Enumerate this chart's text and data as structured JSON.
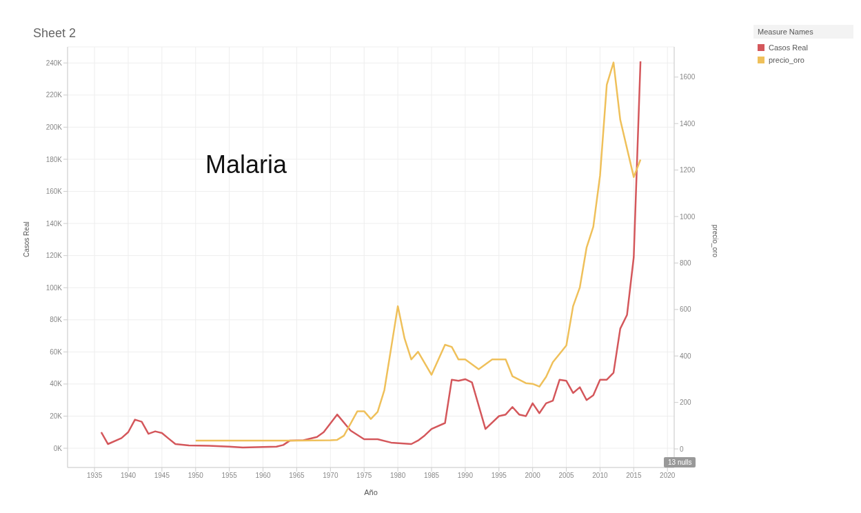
{
  "chart_data": {
    "type": "line",
    "title": "Sheet 2",
    "xlabel": "Año",
    "ylabel": "Casos Real",
    "y2label": "precio_oro",
    "legend_title": "Measure Names",
    "annotations": [
      "Malaria",
      "13 nulls"
    ],
    "series": [
      {
        "name": "Casos Real",
        "color": "#d4575b",
        "axis": "y",
        "x": [
          1936,
          1937,
          1939,
          1940,
          1941,
          1942,
          1943,
          1944,
          1945,
          1946,
          1947,
          1949,
          1952,
          1955,
          1957,
          1960,
          1962,
          1963,
          1964,
          1966,
          1968,
          1969,
          1971,
          1973,
          1975,
          1977,
          1979,
          1982,
          1983,
          1984,
          1985,
          1987,
          1988,
          1989,
          1990,
          1991,
          1993,
          1995,
          1996,
          1997,
          1998,
          1999,
          2000,
          2001,
          2002,
          2003,
          2004,
          2005,
          2006,
          2007,
          2008,
          2009,
          2010,
          2011,
          2012,
          2013,
          2014,
          2015,
          2016
        ],
        "values": [
          10000,
          2600,
          6300,
          10000,
          17800,
          16500,
          9000,
          10500,
          9500,
          6000,
          2600,
          1700,
          1500,
          1000,
          500,
          800,
          1000,
          2000,
          4800,
          5000,
          7000,
          10000,
          21000,
          11000,
          5600,
          5600,
          3500,
          2600,
          4800,
          8000,
          12000,
          15700,
          42700,
          42000,
          43000,
          41000,
          12000,
          20000,
          21000,
          25700,
          21000,
          20000,
          28000,
          21800,
          28000,
          29600,
          42700,
          42000,
          34400,
          38000,
          30000,
          33000,
          42700,
          42700,
          47000,
          74500,
          83000,
          119000,
          241000
        ]
      },
      {
        "name": "precio_oro",
        "color": "#efc05a",
        "axis": "y2",
        "x": [
          1950,
          1955,
          1960,
          1965,
          1970,
          1971,
          1972,
          1974,
          1975,
          1976,
          1977,
          1978,
          1979,
          1980,
          1981,
          1982,
          1983,
          1985,
          1987,
          1988,
          1989,
          1990,
          1992,
          1994,
          1996,
          1997,
          1999,
          2000,
          2001,
          2002,
          2003,
          2005,
          2006,
          2007,
          2008,
          2009,
          2010,
          2011,
          2012,
          2013,
          2015,
          2016
        ],
        "values": [
          36,
          36,
          36,
          36,
          37,
          39,
          57,
          162,
          162,
          129,
          159,
          253,
          433,
          614,
          475,
          385,
          418,
          319,
          448,
          439,
          385,
          385,
          343,
          385,
          385,
          313,
          283,
          280,
          268,
          310,
          373,
          445,
          614,
          695,
          866,
          956,
          1176,
          1567,
          1663,
          1416,
          1170,
          1245
        ]
      }
    ],
    "xlim": [
      1931,
      2021
    ],
    "xticks": [
      1935,
      1940,
      1945,
      1950,
      1955,
      1960,
      1965,
      1970,
      1975,
      1980,
      1985,
      1990,
      1995,
      2000,
      2005,
      2010,
      2015,
      2020
    ],
    "ylim": [
      -12000,
      250000
    ],
    "yticks": [
      {
        "value": 0,
        "label": "0K"
      },
      {
        "value": 20000,
        "label": "20K"
      },
      {
        "value": 40000,
        "label": "40K"
      },
      {
        "value": 60000,
        "label": "60K"
      },
      {
        "value": 80000,
        "label": "80K"
      },
      {
        "value": 100000,
        "label": "100K"
      },
      {
        "value": 120000,
        "label": "120K"
      },
      {
        "value": 140000,
        "label": "140K"
      },
      {
        "value": 160000,
        "label": "160K"
      },
      {
        "value": 180000,
        "label": "180K"
      },
      {
        "value": 200000,
        "label": "200K"
      },
      {
        "value": 220000,
        "label": "220K"
      },
      {
        "value": 240000,
        "label": "240K"
      }
    ],
    "y2lim": [
      -80,
      1730
    ],
    "y2ticks": [
      0,
      200,
      400,
      600,
      800,
      1000,
      1200,
      1400,
      1600
    ],
    "grid": true,
    "legend": "top right",
    "marker": "none",
    "line_style": "solid"
  }
}
